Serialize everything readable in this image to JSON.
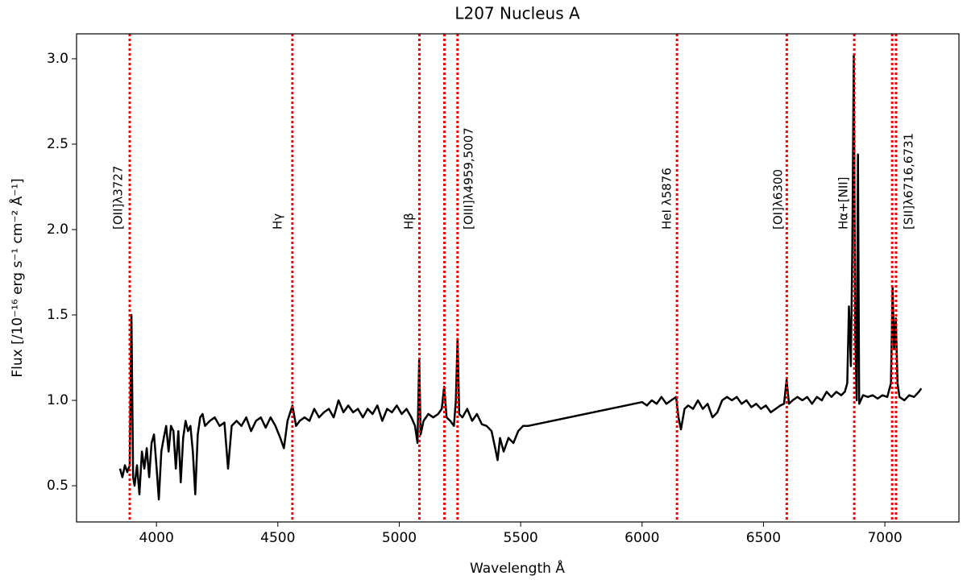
{
  "chart_data": {
    "type": "line",
    "title": "L207 Nucleus A",
    "xlabel": "Wavelength Å",
    "ylabel": "Flux  [/10⁻¹⁶ erg s⁻¹ cm⁻² Å⁻¹]",
    "color": "#000000",
    "x": [
      3850,
      3860,
      3870,
      3880,
      3890,
      3897,
      3904,
      3910,
      3920,
      3930,
      3940,
      3950,
      3960,
      3970,
      3980,
      3990,
      4000,
      4010,
      4020,
      4030,
      4040,
      4050,
      4060,
      4070,
      4080,
      4090,
      4100,
      4110,
      4120,
      4130,
      4140,
      4150,
      4160,
      4170,
      4180,
      4190,
      4200,
      4220,
      4240,
      4260,
      4280,
      4295,
      4310,
      4330,
      4350,
      4370,
      4390,
      4410,
      4430,
      4450,
      4470,
      4490,
      4510,
      4525,
      4540,
      4560,
      4575,
      4590,
      4610,
      4630,
      4650,
      4670,
      4690,
      4710,
      4730,
      4750,
      4770,
      4790,
      4810,
      4830,
      4850,
      4870,
      4890,
      4910,
      4930,
      4950,
      4970,
      4990,
      5010,
      5030,
      5050,
      5065,
      5075,
      5082,
      5088,
      5100,
      5120,
      5140,
      5160,
      5175,
      5185,
      5195,
      5210,
      5225,
      5233,
      5240,
      5247,
      5260,
      5280,
      5300,
      5320,
      5340,
      5360,
      5380,
      5395,
      5405,
      5415,
      5430,
      5450,
      5470,
      5490,
      5510,
      5530,
      6000,
      6020,
      6040,
      6060,
      6080,
      6100,
      6120,
      6140,
      6150,
      6160,
      6175,
      6190,
      6210,
      6230,
      6250,
      6270,
      6290,
      6310,
      6330,
      6350,
      6370,
      6390,
      6410,
      6430,
      6450,
      6470,
      6490,
      6510,
      6530,
      6550,
      6570,
      6585,
      6595,
      6605,
      6620,
      6640,
      6660,
      6680,
      6700,
      6720,
      6740,
      6760,
      6780,
      6800,
      6820,
      6835,
      6845,
      6852,
      6860,
      6866,
      6872,
      6878,
      6884,
      6889,
      6894,
      6910,
      6930,
      6950,
      6970,
      6990,
      7010,
      7025,
      7032,
      7038,
      7045,
      7052,
      7060,
      7080,
      7100,
      7120,
      7140,
      7150
    ],
    "values": [
      0.6,
      0.55,
      0.62,
      0.58,
      0.62,
      1.5,
      0.55,
      0.5,
      0.62,
      0.45,
      0.7,
      0.6,
      0.72,
      0.55,
      0.75,
      0.8,
      0.62,
      0.42,
      0.7,
      0.78,
      0.85,
      0.7,
      0.85,
      0.82,
      0.6,
      0.82,
      0.52,
      0.78,
      0.88,
      0.82,
      0.85,
      0.7,
      0.45,
      0.8,
      0.9,
      0.92,
      0.85,
      0.88,
      0.9,
      0.85,
      0.87,
      0.6,
      0.85,
      0.88,
      0.85,
      0.9,
      0.82,
      0.88,
      0.9,
      0.84,
      0.9,
      0.85,
      0.78,
      0.72,
      0.88,
      0.97,
      0.85,
      0.88,
      0.9,
      0.88,
      0.95,
      0.9,
      0.93,
      0.95,
      0.9,
      1.0,
      0.93,
      0.97,
      0.93,
      0.95,
      0.9,
      0.95,
      0.92,
      0.97,
      0.88,
      0.95,
      0.93,
      0.97,
      0.92,
      0.95,
      0.9,
      0.85,
      0.75,
      1.24,
      0.8,
      0.88,
      0.92,
      0.9,
      0.92,
      0.95,
      1.08,
      0.9,
      0.88,
      0.85,
      1.0,
      1.36,
      0.92,
      0.9,
      0.95,
      0.88,
      0.92,
      0.86,
      0.85,
      0.82,
      0.72,
      0.65,
      0.78,
      0.7,
      0.78,
      0.75,
      0.82,
      0.85,
      0.85,
      0.99,
      0.97,
      1.0,
      0.98,
      1.02,
      0.98,
      1.0,
      1.02,
      0.9,
      0.83,
      0.95,
      0.97,
      0.95,
      1.0,
      0.95,
      0.98,
      0.9,
      0.93,
      1.0,
      1.02,
      1.0,
      1.02,
      0.98,
      1.0,
      0.96,
      0.98,
      0.95,
      0.97,
      0.93,
      0.95,
      0.97,
      0.98,
      1.12,
      0.98,
      1.0,
      1.02,
      1.0,
      1.02,
      0.98,
      1.02,
      1.0,
      1.05,
      1.02,
      1.05,
      1.03,
      1.05,
      1.1,
      1.55,
      1.2,
      1.9,
      3.02,
      1.4,
      1.0,
      2.44,
      0.98,
      1.03,
      1.02,
      1.03,
      1.01,
      1.03,
      1.02,
      1.1,
      1.66,
      1.3,
      1.48,
      1.1,
      1.02,
      1.0,
      1.03,
      1.02,
      1.05,
      1.07
    ],
    "vlines": [
      3890,
      4560,
      5083,
      5186,
      5240,
      6144,
      6596,
      6874,
      7030,
      7046
    ],
    "vline_color": "#ff0000",
    "annotations": [
      {
        "text": "[OII]λ3727",
        "x": 3844,
        "y": 2.0
      },
      {
        "text": "Hγ",
        "x": 4501,
        "y": 2.0
      },
      {
        "text": "Hβ",
        "x": 5042,
        "y": 2.0
      },
      {
        "text": "[OIII]λ4959,5007",
        "x": 5288,
        "y": 2.0
      },
      {
        "text": "HeI λ5876",
        "x": 6104,
        "y": 2.0
      },
      {
        "text": "[OI]λ6300",
        "x": 6562,
        "y": 2.0
      },
      {
        "text": "Hα+[NII]",
        "x": 6831,
        "y": 2.0
      },
      {
        "text": "[SII]λ6716,6731",
        "x": 7100,
        "y": 2.0
      }
    ],
    "xlim": [
      3671,
      7305
    ],
    "xticks": [
      4000,
      4500,
      5000,
      5500,
      6000,
      6500,
      7000
    ],
    "ylim": [
      0.288,
      3.146
    ],
    "yticks": [
      0.5,
      {
        "value": 1,
        "label": "1.0"
      },
      1.5,
      {
        "value": 2,
        "label": "2.0"
      },
      2.5,
      {
        "value": 3,
        "label": "3.0"
      }
    ],
    "grid": false
  }
}
